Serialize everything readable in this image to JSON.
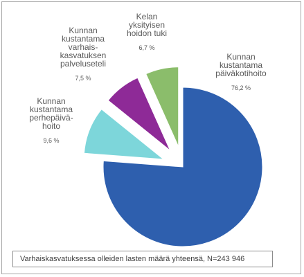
{
  "chart_data": {
    "type": "pie",
    "exploded": true,
    "slices": [
      {
        "label": "Kunnan kustantama päiväkotihoito",
        "label_lines": [
          "Kunnan",
          "kustantama",
          "päiväkotihoito"
        ],
        "value": 76.2,
        "value_label": "76,2 %",
        "color": "#2e5fae"
      },
      {
        "label": "Kunnan kustantama perhepäivähoito",
        "label_lines": [
          "Kunnan",
          "kustantama",
          "perhepäivä-",
          "hoito"
        ],
        "value": 9.6,
        "value_label": "9,6 %",
        "color": "#7dd6da"
      },
      {
        "label": "Kunnan kustantama varhaiskasvatuksen palveluseteli",
        "label_lines": [
          "Kunnan",
          "kustantama",
          "varhais-",
          "kasvatuksen",
          "palveluseteli"
        ],
        "value": 7.5,
        "value_label": "7,5 %",
        "color": "#8e2a97"
      },
      {
        "label": "Kelan yksityisen hoidon tuki",
        "label_lines": [
          "Kelan",
          "yksityisen",
          "hoidon tuki"
        ],
        "value": 6.7,
        "value_label": "6,7 %",
        "color": "#8bbd6b"
      }
    ],
    "note": "Varhaiskasvatuksessa olleiden lasten määrä yhteensä, N=243 946"
  }
}
